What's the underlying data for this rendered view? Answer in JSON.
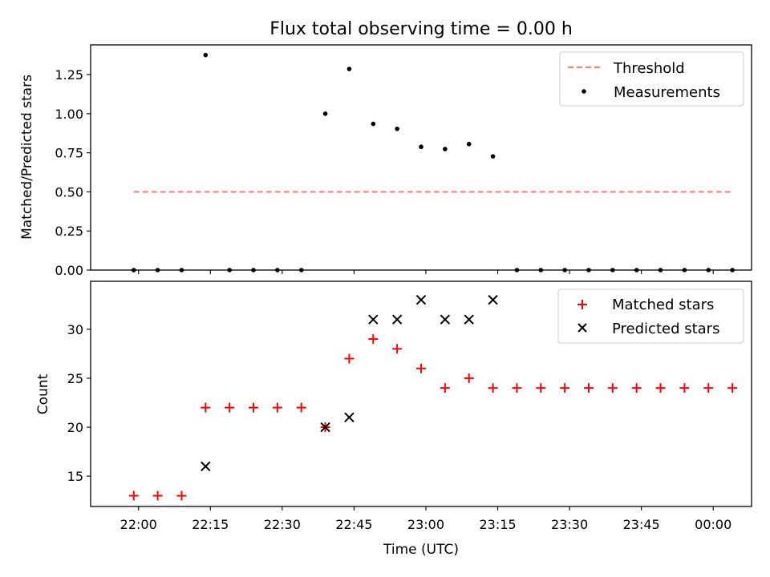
{
  "chart_data": {
    "title": "Flux total observing time = 0.00 h",
    "xlabel": "Time (UTC)",
    "x_ticks": [
      "22:00",
      "22:15",
      "22:30",
      "22:45",
      "23:00",
      "23:15",
      "23:30",
      "23:45",
      "00:00"
    ],
    "times": [
      "21:59",
      "22:04",
      "22:09",
      "22:14",
      "22:19",
      "22:24",
      "22:29",
      "22:34",
      "22:39",
      "22:44",
      "22:49",
      "22:54",
      "22:59",
      "23:04",
      "23:09",
      "23:14",
      "23:19",
      "23:24",
      "23:29",
      "23:34",
      "23:39",
      "23:44",
      "23:49",
      "23:54",
      "23:59",
      "00:04"
    ],
    "panels": [
      {
        "type": "scatter",
        "ylabel": "Matched/Predicted stars",
        "ylim": [
          0,
          1.44
        ],
        "y_ticks": [
          "0.00",
          "0.25",
          "0.50",
          "0.75",
          "1.00",
          "1.25"
        ],
        "threshold": {
          "name": "Threshold",
          "value": 0.5,
          "color": "#ff7f7f",
          "style": "dashed"
        },
        "series": [
          {
            "name": "Measurements",
            "color": "#000000",
            "marker": "dot",
            "values": [
              0,
              0,
              0,
              1.375,
              0,
              0,
              0,
              0,
              1.0,
              1.286,
              0.935,
              0.903,
              0.788,
              0.774,
              0.806,
              0.727,
              0,
              0,
              0,
              0,
              0,
              0,
              0,
              0,
              0,
              0
            ]
          }
        ],
        "legend": "top-right"
      },
      {
        "type": "scatter",
        "ylabel": "Count",
        "ylim": [
          11.9,
          34.9
        ],
        "y_ticks": [
          "15",
          "20",
          "25",
          "30"
        ],
        "series": [
          {
            "name": "Matched stars",
            "color": "#ff0000",
            "marker": "plus",
            "values": [
              13,
              13,
              13,
              22,
              22,
              22,
              22,
              22,
              20,
              27,
              29,
              28,
              26,
              24,
              25,
              24,
              24,
              24,
              24,
              24,
              24,
              24,
              24,
              24,
              24,
              24
            ]
          },
          {
            "name": "Predicted stars",
            "color": "#000000",
            "marker": "x",
            "values": [
              null,
              null,
              null,
              16,
              null,
              null,
              null,
              null,
              20,
              21,
              31,
              31,
              33,
              31,
              31,
              33,
              null,
              null,
              null,
              null,
              null,
              null,
              null,
              null,
              null,
              null
            ]
          }
        ],
        "legend": "top-right"
      }
    ]
  }
}
